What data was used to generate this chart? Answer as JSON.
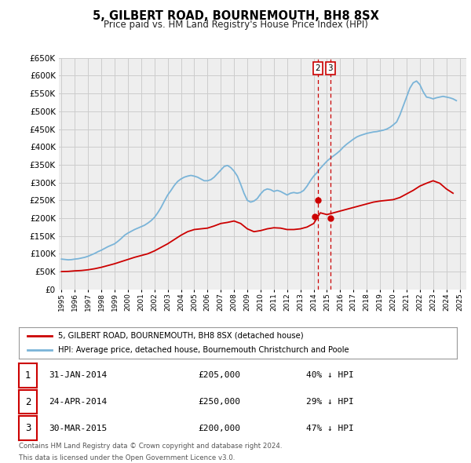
{
  "title": "5, GILBERT ROAD, BOURNEMOUTH, BH8 8SX",
  "subtitle": "Price paid vs. HM Land Registry's House Price Index (HPI)",
  "hpi_color": "#7ab4d8",
  "price_color": "#cc0000",
  "bg_color": "#ffffff",
  "grid_color": "#cccccc",
  "plot_bg": "#eeeeee",
  "ylim": [
    0,
    650000
  ],
  "yticks": [
    0,
    50000,
    100000,
    150000,
    200000,
    250000,
    300000,
    350000,
    400000,
    450000,
    500000,
    550000,
    600000,
    650000
  ],
  "xlim_start": 1994.8,
  "xlim_end": 2025.5,
  "transactions": [
    {
      "label": "1",
      "date": "31-JAN-2014",
      "x": 2014.08,
      "price": 205000,
      "pct": "40%",
      "dot_y": 205000
    },
    {
      "label": "2",
      "date": "24-APR-2014",
      "x": 2014.3,
      "price": 250000,
      "pct": "29%",
      "dot_y": 250000
    },
    {
      "label": "3",
      "date": "30-MAR-2015",
      "x": 2015.25,
      "price": 200000,
      "pct": "47%",
      "dot_y": 200000
    }
  ],
  "legend_line1": "5, GILBERT ROAD, BOURNEMOUTH, BH8 8SX (detached house)",
  "legend_line2": "HPI: Average price, detached house, Bournemouth Christchurch and Poole",
  "footer_line1": "Contains HM Land Registry data © Crown copyright and database right 2024.",
  "footer_line2": "This data is licensed under the Open Government Licence v3.0.",
  "hpi_data_x": [
    1995.0,
    1995.25,
    1995.5,
    1995.75,
    1996.0,
    1996.25,
    1996.5,
    1996.75,
    1997.0,
    1997.25,
    1997.5,
    1997.75,
    1998.0,
    1998.25,
    1998.5,
    1998.75,
    1999.0,
    1999.25,
    1999.5,
    1999.75,
    2000.0,
    2000.25,
    2000.5,
    2000.75,
    2001.0,
    2001.25,
    2001.5,
    2001.75,
    2002.0,
    2002.25,
    2002.5,
    2002.75,
    2003.0,
    2003.25,
    2003.5,
    2003.75,
    2004.0,
    2004.25,
    2004.5,
    2004.75,
    2005.0,
    2005.25,
    2005.5,
    2005.75,
    2006.0,
    2006.25,
    2006.5,
    2006.75,
    2007.0,
    2007.25,
    2007.5,
    2007.75,
    2008.0,
    2008.25,
    2008.5,
    2008.75,
    2009.0,
    2009.25,
    2009.5,
    2009.75,
    2010.0,
    2010.25,
    2010.5,
    2010.75,
    2011.0,
    2011.25,
    2011.5,
    2011.75,
    2012.0,
    2012.25,
    2012.5,
    2012.75,
    2013.0,
    2013.25,
    2013.5,
    2013.75,
    2014.0,
    2014.25,
    2014.5,
    2014.75,
    2015.0,
    2015.25,
    2015.5,
    2015.75,
    2016.0,
    2016.25,
    2016.5,
    2016.75,
    2017.0,
    2017.25,
    2017.5,
    2017.75,
    2018.0,
    2018.25,
    2018.5,
    2018.75,
    2019.0,
    2019.25,
    2019.5,
    2019.75,
    2020.0,
    2020.25,
    2020.5,
    2020.75,
    2021.0,
    2021.25,
    2021.5,
    2021.75,
    2022.0,
    2022.25,
    2022.5,
    2022.75,
    2023.0,
    2023.25,
    2023.5,
    2023.75,
    2024.0,
    2024.25,
    2024.5,
    2024.75
  ],
  "hpi_data_y": [
    85000,
    84000,
    83000,
    83500,
    85000,
    86000,
    88000,
    90000,
    93000,
    97000,
    101000,
    106000,
    110000,
    115000,
    120000,
    124000,
    128000,
    135000,
    143000,
    152000,
    158000,
    163000,
    168000,
    172000,
    176000,
    180000,
    186000,
    193000,
    202000,
    215000,
    230000,
    248000,
    265000,
    278000,
    292000,
    303000,
    310000,
    315000,
    318000,
    320000,
    318000,
    315000,
    310000,
    305000,
    305000,
    308000,
    315000,
    325000,
    335000,
    345000,
    348000,
    342000,
    332000,
    318000,
    295000,
    270000,
    250000,
    245000,
    248000,
    255000,
    268000,
    278000,
    282000,
    280000,
    275000,
    278000,
    275000,
    270000,
    265000,
    270000,
    272000,
    270000,
    272000,
    278000,
    290000,
    305000,
    318000,
    328000,
    340000,
    350000,
    360000,
    368000,
    375000,
    382000,
    390000,
    400000,
    408000,
    415000,
    422000,
    428000,
    432000,
    435000,
    438000,
    440000,
    442000,
    443000,
    445000,
    447000,
    450000,
    455000,
    462000,
    470000,
    490000,
    515000,
    540000,
    565000,
    580000,
    585000,
    575000,
    555000,
    540000,
    538000,
    535000,
    538000,
    540000,
    542000,
    540000,
    538000,
    535000,
    530000
  ],
  "price_data_x": [
    1995.0,
    1995.5,
    1996.0,
    1996.5,
    1997.0,
    1997.5,
    1998.0,
    1998.5,
    1999.0,
    1999.5,
    2000.0,
    2000.5,
    2001.0,
    2001.5,
    2002.0,
    2002.5,
    2003.0,
    2003.5,
    2004.0,
    2004.5,
    2005.0,
    2005.5,
    2006.0,
    2006.5,
    2007.0,
    2007.5,
    2008.0,
    2008.5,
    2009.0,
    2009.5,
    2010.0,
    2010.5,
    2011.0,
    2011.5,
    2012.0,
    2012.5,
    2013.0,
    2013.5,
    2014.0,
    2014.5,
    2015.0,
    2015.5,
    2016.0,
    2016.5,
    2017.0,
    2017.5,
    2018.0,
    2018.5,
    2019.0,
    2019.5,
    2020.0,
    2020.5,
    2021.0,
    2021.5,
    2022.0,
    2022.5,
    2023.0,
    2023.5,
    2024.0,
    2024.5
  ],
  "price_data_y": [
    50000,
    50500,
    52000,
    53000,
    55000,
    58000,
    62000,
    67000,
    72000,
    78000,
    84000,
    90000,
    95000,
    100000,
    108000,
    118000,
    128000,
    140000,
    152000,
    162000,
    168000,
    170000,
    172000,
    178000,
    185000,
    188000,
    192000,
    185000,
    170000,
    162000,
    165000,
    170000,
    173000,
    172000,
    168000,
    168000,
    170000,
    175000,
    185000,
    215000,
    210000,
    215000,
    220000,
    225000,
    230000,
    235000,
    240000,
    245000,
    248000,
    250000,
    252000,
    258000,
    268000,
    278000,
    290000,
    298000,
    305000,
    298000,
    282000,
    270000
  ]
}
